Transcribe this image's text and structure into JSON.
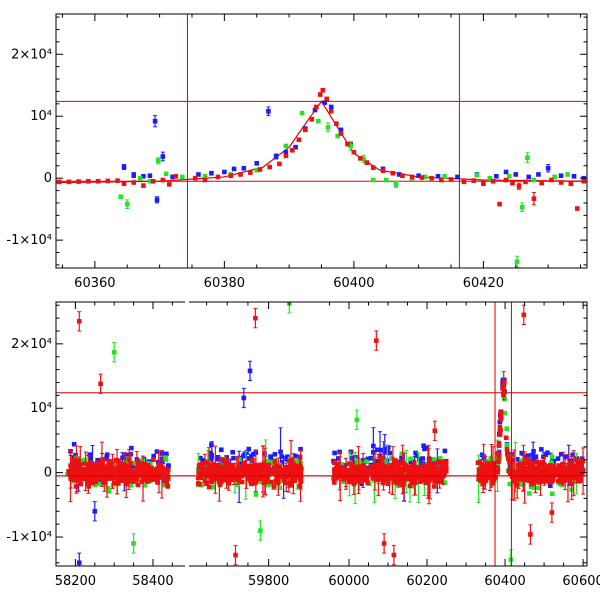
{
  "colors": {
    "series_blue": "#1c1cff",
    "series_green": "#22e622",
    "series_red": "#ee1111",
    "model": "#dd0000",
    "frame": "#000000"
  },
  "chart_data": [
    {
      "type": "scatter",
      "panel": "top",
      "xlim": [
        60354,
        60436
      ],
      "ylim": [
        -14500,
        26500
      ],
      "yticks": [
        {
          "value": -10000,
          "label": "-1×10⁴"
        },
        {
          "value": 0,
          "label": "0"
        },
        {
          "value": 10000,
          "label": "10⁴"
        },
        {
          "value": 20000,
          "label": "2×10⁴"
        }
      ],
      "xticks": [
        {
          "value": 60360,
          "label": "60360"
        },
        {
          "value": 60380,
          "label": "60380"
        },
        {
          "value": 60400,
          "label": "60400"
        },
        {
          "value": 60420,
          "label": "60420"
        }
      ],
      "hlines": [
        12400,
        -500
      ],
      "vlines": [
        60374.3,
        60416.3
      ],
      "model_curve": {
        "x": [
          60354,
          60370,
          60380,
          60386,
          60390,
          60393,
          60395,
          60397,
          60400,
          60404,
          60410,
          60420,
          60436
        ],
        "y": [
          -700,
          -500,
          200,
          1800,
          5000,
          9500,
          12400,
          9000,
          4000,
          1300,
          200,
          -300,
          -500
        ]
      },
      "series": [
        {
          "color": "series_blue",
          "points": [
            [
              60364.5,
              1800,
              400
            ],
            [
              60366,
              500,
              400
            ],
            [
              60367.5,
              300,
              0
            ],
            [
              60368.5,
              400,
              0
            ],
            [
              60369.3,
              9200,
              900
            ],
            [
              60369.6,
              -3500,
              500
            ],
            [
              60370.5,
              3500,
              700
            ],
            [
              60372,
              200,
              0
            ],
            [
              60376,
              600,
              0
            ],
            [
              60378,
              800,
              0
            ],
            [
              60380,
              1000,
              0
            ],
            [
              60381.5,
              1500,
              0
            ],
            [
              60383,
              1600,
              0
            ],
            [
              60385,
              2400,
              0
            ],
            [
              60386.8,
              10800,
              700
            ],
            [
              60388,
              3500,
              400
            ],
            [
              60389.5,
              4200,
              0
            ],
            [
              60391,
              5000,
              0
            ],
            [
              60392.5,
              8000,
              0
            ],
            [
              60394,
              11000,
              0
            ],
            [
              60395.5,
              12200,
              0
            ],
            [
              60396.5,
              11500,
              0
            ],
            [
              60398,
              7800,
              0
            ],
            [
              60399.5,
              5500,
              0
            ],
            [
              60402,
              2500,
              0
            ],
            [
              60404.5,
              1500,
              0
            ],
            [
              60407,
              600,
              0
            ],
            [
              60410,
              400,
              0
            ],
            [
              60413,
              300,
              0
            ],
            [
              60416,
              200,
              0
            ],
            [
              60419,
              600,
              0
            ],
            [
              60422,
              300,
              0
            ],
            [
              60425,
              600,
              0
            ],
            [
              60427,
              200,
              0
            ],
            [
              60428.5,
              600,
              0
            ],
            [
              60430,
              1600,
              600
            ],
            [
              60432,
              400,
              0
            ],
            [
              60434,
              300,
              0
            ],
            [
              60435.5,
              0,
              0
            ],
            [
              60423.5,
              1000,
              0
            ]
          ]
        },
        {
          "color": "series_green",
          "points": [
            [
              60364,
              -3000,
              0
            ],
            [
              60365,
              -4200,
              700
            ],
            [
              60367,
              0,
              0
            ],
            [
              60368.5,
              -500,
              0
            ],
            [
              60369.8,
              2800,
              500
            ],
            [
              60371,
              700,
              0
            ],
            [
              60373.5,
              200,
              0
            ],
            [
              60377,
              300,
              0
            ],
            [
              60381,
              600,
              0
            ],
            [
              60385,
              1300,
              0
            ],
            [
              60389.5,
              5200,
              0
            ],
            [
              60392,
              10500,
              0
            ],
            [
              60394.5,
              9200,
              0
            ],
            [
              60396,
              8200,
              700
            ],
            [
              60397.5,
              6800,
              0
            ],
            [
              60399.5,
              5200,
              700
            ],
            [
              60401.5,
              3100,
              600
            ],
            [
              60403,
              -300,
              0
            ],
            [
              60405,
              -300,
              0
            ],
            [
              60406.5,
              -1000,
              500
            ],
            [
              60409,
              0,
              0
            ],
            [
              60411,
              200,
              0
            ],
            [
              60414,
              300,
              0
            ],
            [
              60419,
              500,
              0
            ],
            [
              60421,
              0,
              0
            ],
            [
              60424,
              300,
              0
            ],
            [
              60425.2,
              -13500,
              900
            ],
            [
              60426,
              -4700,
              700
            ],
            [
              60426.8,
              3300,
              800
            ],
            [
              60427.8,
              -300,
              0
            ],
            [
              60431,
              200,
              0
            ],
            [
              60433,
              600,
              0
            ]
          ]
        },
        {
          "color": "series_red",
          "points": [
            [
              60354.5,
              -600,
              0
            ],
            [
              60356,
              -600,
              0
            ],
            [
              60357.5,
              -550,
              0
            ],
            [
              60359,
              -500,
              0
            ],
            [
              60360.5,
              -500,
              0
            ],
            [
              60362,
              -450,
              0
            ],
            [
              60363.5,
              -400,
              0
            ],
            [
              60364.5,
              -900,
              0
            ],
            [
              60366,
              -700,
              0
            ],
            [
              60367.5,
              -1200,
              0
            ],
            [
              60369,
              -500,
              0
            ],
            [
              60370.5,
              -300,
              0
            ],
            [
              60371.5,
              -1000,
              0
            ],
            [
              60372.5,
              300,
              0
            ],
            [
              60375.5,
              0,
              0
            ],
            [
              60377,
              -300,
              0
            ],
            [
              60379,
              200,
              0
            ],
            [
              60381,
              400,
              0
            ],
            [
              60382.5,
              600,
              0
            ],
            [
              60384,
              900,
              0
            ],
            [
              60385.5,
              1400,
              0
            ],
            [
              60387,
              1800,
              0
            ],
            [
              60388.5,
              2300,
              0
            ],
            [
              60389.5,
              3600,
              0
            ],
            [
              60390.5,
              4500,
              0
            ],
            [
              60391.5,
              6200,
              0
            ],
            [
              60392.5,
              7800,
              0
            ],
            [
              60393.5,
              9500,
              0
            ],
            [
              60394.2,
              11500,
              0
            ],
            [
              60394.8,
              13500,
              0
            ],
            [
              60395.2,
              14200,
              0
            ],
            [
              60395.8,
              12800,
              0
            ],
            [
              60396.5,
              10800,
              0
            ],
            [
              60397.3,
              8800,
              0
            ],
            [
              60398,
              7200,
              0
            ],
            [
              60399,
              5500,
              0
            ],
            [
              60400,
              4200,
              0
            ],
            [
              60401,
              3200,
              0
            ],
            [
              60402,
              2500,
              0
            ],
            [
              60403,
              1700,
              0
            ],
            [
              60404.5,
              1200,
              0
            ],
            [
              60406,
              800,
              0
            ],
            [
              60407.5,
              400,
              0
            ],
            [
              60409,
              200,
              0
            ],
            [
              60410.5,
              100,
              0
            ],
            [
              60412,
              0,
              0
            ],
            [
              60413.5,
              -300,
              0
            ],
            [
              60415,
              -200,
              0
            ],
            [
              60417,
              -600,
              0
            ],
            [
              60418.5,
              -400,
              0
            ],
            [
              60420,
              -900,
              0
            ],
            [
              60421.5,
              -500,
              0
            ],
            [
              60422.5,
              -4200,
              0
            ],
            [
              60423.5,
              -300,
              0
            ],
            [
              60424.5,
              -800,
              0
            ],
            [
              60425.5,
              -1300,
              500
            ],
            [
              60426.5,
              -600,
              0
            ],
            [
              60427.8,
              -3300,
              1000
            ],
            [
              60429,
              -800,
              0
            ],
            [
              60430.5,
              -300,
              0
            ],
            [
              60432,
              -700,
              0
            ],
            [
              60433.5,
              -900,
              0
            ],
            [
              60434.5,
              -4900,
              0
            ],
            [
              60435.5,
              -500,
              0
            ]
          ]
        }
      ]
    },
    {
      "type": "scatter",
      "panel": "bottom",
      "ylim": [
        -14500,
        26500
      ],
      "yticks": [
        {
          "value": -10000,
          "label": "-1×10⁴"
        },
        {
          "value": 0,
          "label": "0"
        },
        {
          "value": 10000,
          "label": "10⁴"
        },
        {
          "value": 20000,
          "label": "2×10⁴"
        }
      ],
      "hlines": [
        12400,
        -500
      ],
      "segments": [
        {
          "xlim": [
            58150,
            58480
          ],
          "xticks": [
            {
              "value": 58200,
              "label": "58200"
            },
            {
              "value": 58400,
              "label": "58400"
            }
          ],
          "clusters": [
            [
              58180,
              58440
            ]
          ],
          "outliers": [
            [
              58210,
              23500,
              "series_red"
            ],
            [
              58265,
              13800,
              "series_red"
            ],
            [
              58300,
              18700,
              "series_green"
            ],
            [
              58350,
              -11000,
              "series_green"
            ],
            [
              58210,
              -14000,
              "series_blue"
            ],
            [
              58250,
              -6000,
              "series_blue"
            ]
          ]
        },
        {
          "xlim": [
            59610,
            59900
          ],
          "xticks": [
            {
              "value": 59800,
              "label": "59800"
            }
          ],
          "clusters": [
            [
              59630,
              59880
            ]
          ],
          "outliers": [
            [
              59768,
              24000,
              "series_red"
            ],
            [
              59755,
              15800,
              "series_blue"
            ],
            [
              59740,
              11600,
              "series_blue"
            ],
            [
              59720,
              -12800,
              "series_red"
            ],
            [
              59780,
              -9000,
              "series_green"
            ],
            [
              59850,
              26300,
              "series_green"
            ]
          ]
        },
        {
          "xlim": [
            59900,
            60610
          ],
          "xticks": [
            {
              "value": 60000,
              "label": "60000"
            },
            {
              "value": 60200,
              "label": "60200"
            },
            {
              "value": 60400,
              "label": "60400"
            },
            {
              "value": 60600,
              "label": "60600"
            }
          ],
          "clusters": [
            [
              59960,
              60250
            ],
            [
              60330,
              60600
            ]
          ],
          "outliers": [
            [
              60070,
              20500,
              "series_red"
            ],
            [
              60090,
              -11000,
              "series_red"
            ],
            [
              60115,
              -12800,
              "series_red"
            ],
            [
              60020,
              8200,
              "series_green"
            ],
            [
              60220,
              6500,
              "series_red"
            ],
            [
              60448,
              24500,
              "series_red"
            ],
            [
              60465,
              -9600,
              "series_red"
            ],
            [
              60415,
              -13500,
              "series_green"
            ],
            [
              60520,
              -6200,
              "series_red"
            ]
          ],
          "flare": {
            "center": 60395,
            "peak": 13500
          }
        }
      ],
      "vlines": [
        60374.3,
        60416.3
      ]
    }
  ]
}
